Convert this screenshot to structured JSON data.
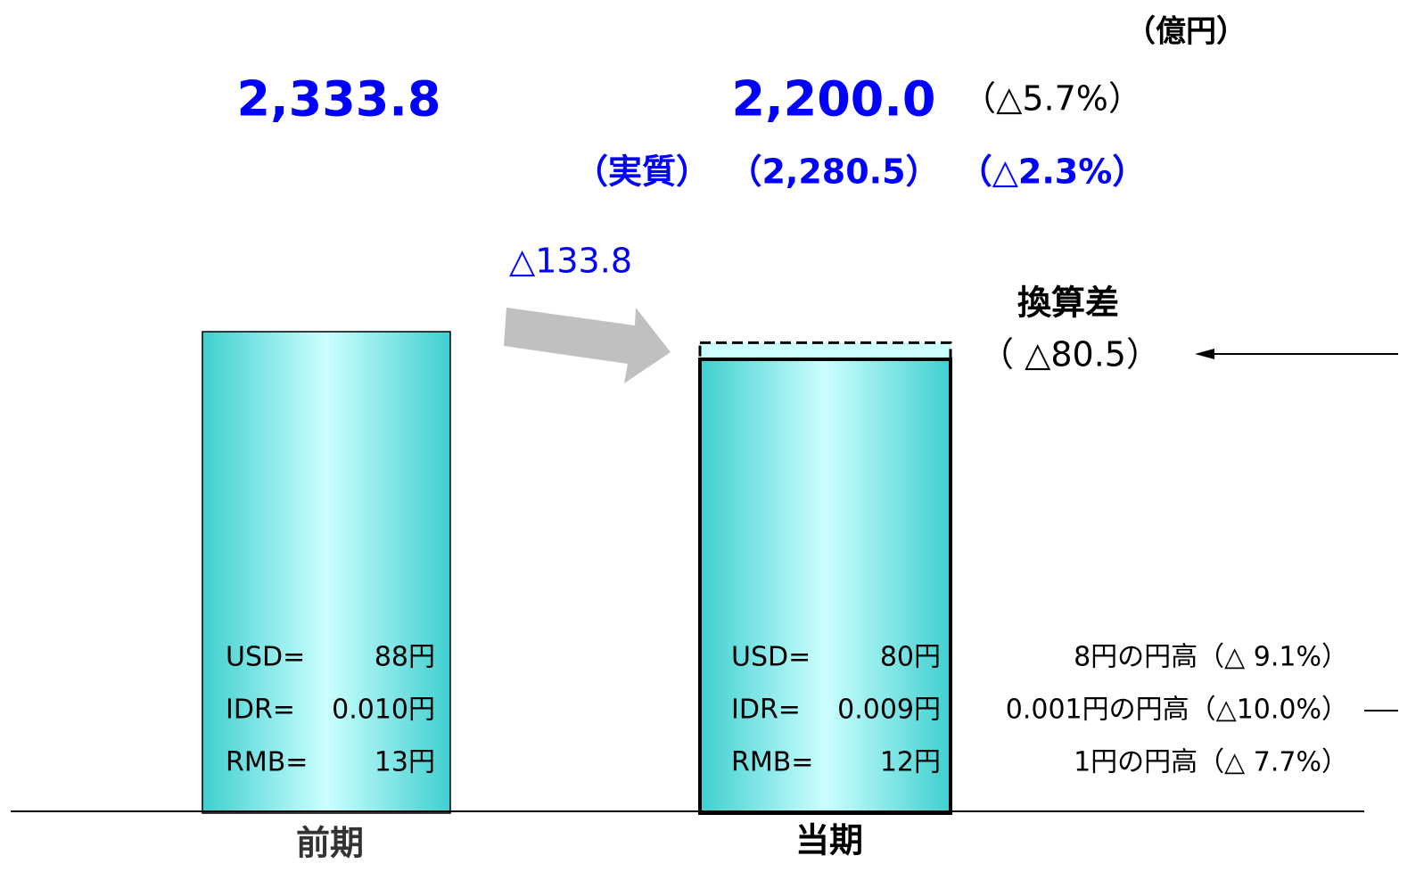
{
  "unit": "（億円）",
  "bars": [
    {
      "label": "前期",
      "value": 2333.8,
      "value_label": "2,333.8",
      "rates": [
        [
          "USD=",
          "88円"
        ],
        [
          "IDR=",
          "0.010円"
        ],
        [
          "RMB=",
          "13円"
        ]
      ]
    },
    {
      "label": "当期",
      "value": 2200.0,
      "value_label": "2,200.0",
      "change": "（△5.7%）",
      "rates": [
        [
          "USD=",
          "80円"
        ],
        [
          "IDR=",
          "0.009円"
        ],
        [
          "RMB=",
          "12円"
        ]
      ]
    }
  ],
  "real": {
    "label": "（実質）",
    "value": 2280.5,
    "value_label": "（2,280.5）",
    "change": "（△2.3%）"
  },
  "difference": "△133.8",
  "fx": {
    "title": "換算差",
    "value_label": "（ △80.5）"
  },
  "rate_changes": [
    "8円の円高（△ 9.1%）",
    "0.001円の円高（△10.0%）",
    "1円の円高（△ 7.7%）"
  ]
}
